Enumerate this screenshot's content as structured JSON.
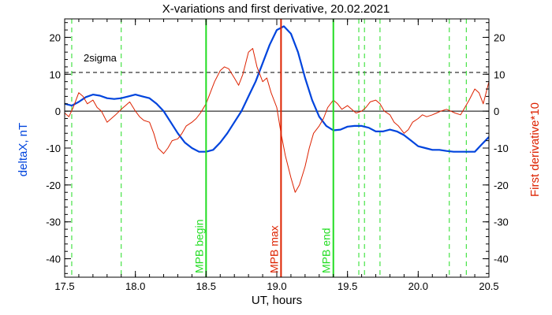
{
  "chart_data": {
    "type": "line",
    "title": "X-variations and first derivative, 20.02.2021",
    "xlabel": "UT, hours",
    "ylabel_left": "deltaX, nT",
    "ylabel_right": "First derivative*10",
    "xlim": [
      17.5,
      20.5
    ],
    "ylim": [
      -45,
      25
    ],
    "x_ticks": [
      "17.5",
      "18.0",
      "18.5",
      "19.0",
      "19.5",
      "20.0",
      "20.5"
    ],
    "y_ticks_left": [
      "20",
      "10",
      "0",
      "-10",
      "-20",
      "-30",
      "-40"
    ],
    "y_ticks_right": [
      "20",
      "10",
      "0",
      "-10",
      "-20",
      "-30",
      "-40"
    ],
    "colors": {
      "deltaX": "#0044dd",
      "derivative": "#dd2200",
      "green": "#22dd22",
      "red_marker": "#dd2200"
    },
    "sigma_level": 10.5,
    "sigma_label": "2sigma",
    "series": [
      {
        "key": "deltaX",
        "x": [
          17.5,
          17.55,
          17.6,
          17.65,
          17.7,
          17.75,
          17.8,
          17.85,
          17.9,
          17.95,
          18.0,
          18.05,
          18.1,
          18.15,
          18.2,
          18.25,
          18.3,
          18.35,
          18.4,
          18.45,
          18.5,
          18.55,
          18.6,
          18.65,
          18.7,
          18.75,
          18.8,
          18.85,
          18.9,
          18.95,
          19.0,
          19.05,
          19.1,
          19.15,
          19.2,
          19.25,
          19.3,
          19.35,
          19.4,
          19.45,
          19.5,
          19.55,
          19.6,
          19.65,
          19.7,
          19.75,
          19.8,
          19.85,
          19.9,
          19.95,
          20.0,
          20.05,
          20.1,
          20.15,
          20.2,
          20.25,
          20.3,
          20.35,
          20.4,
          20.45,
          20.5
        ],
        "y": [
          2,
          1.5,
          2.5,
          3.8,
          4.5,
          4.2,
          3.5,
          3.3,
          3.5,
          4,
          4.5,
          4,
          3.5,
          2,
          0,
          -3,
          -6,
          -8.5,
          -10,
          -11,
          -11,
          -10.5,
          -8.5,
          -6,
          -3,
          0,
          4,
          8,
          13,
          18,
          22,
          23,
          21,
          16,
          9,
          3,
          -1.5,
          -4,
          -5.2,
          -5,
          -4.2,
          -4,
          -4,
          -4.5,
          -5.5,
          -5.5,
          -5,
          -5.5,
          -6.5,
          -8,
          -9.5,
          -10,
          -10.5,
          -10.5,
          -10.8,
          -11,
          -11,
          -11,
          -11,
          -9,
          -7
        ]
      },
      {
        "key": "derivative",
        "x": [
          17.5,
          17.53,
          17.56,
          17.6,
          17.63,
          17.66,
          17.7,
          17.73,
          17.76,
          17.8,
          17.83,
          17.86,
          17.9,
          17.93,
          17.96,
          18.0,
          18.03,
          18.06,
          18.1,
          18.13,
          18.16,
          18.2,
          18.23,
          18.26,
          18.3,
          18.33,
          18.36,
          18.4,
          18.43,
          18.46,
          18.5,
          18.53,
          18.56,
          18.6,
          18.63,
          18.66,
          18.7,
          18.73,
          18.76,
          18.8,
          18.83,
          18.86,
          18.9,
          18.93,
          18.96,
          19.0,
          19.03,
          19.06,
          19.1,
          19.13,
          19.16,
          19.2,
          19.23,
          19.26,
          19.3,
          19.33,
          19.36,
          19.4,
          19.43,
          19.46,
          19.5,
          19.53,
          19.56,
          19.6,
          19.63,
          19.66,
          19.7,
          19.73,
          19.76,
          19.8,
          19.83,
          19.86,
          19.9,
          19.93,
          19.96,
          20.0,
          20.03,
          20.06,
          20.1,
          20.13,
          20.16,
          20.2,
          20.23,
          20.26,
          20.3,
          20.33,
          20.36,
          20.4,
          20.43,
          20.46,
          20.5
        ],
        "y": [
          -0.5,
          -1.5,
          1,
          5,
          4,
          2,
          3,
          1,
          0,
          -3,
          -2,
          -1,
          0.5,
          1.5,
          2.5,
          0,
          -1.5,
          -2.5,
          -3,
          -6,
          -10,
          -11.5,
          -10,
          -8,
          -7.5,
          -6,
          -4,
          -3,
          -2,
          -0.5,
          2,
          5,
          8,
          11,
          12,
          11.5,
          9,
          7,
          10,
          16,
          17,
          12,
          8,
          9,
          5,
          1,
          -6,
          -12,
          -18,
          -22,
          -20,
          -15,
          -10,
          -6,
          -4,
          -2,
          1,
          3,
          2,
          0.5,
          1.5,
          0.5,
          -0.5,
          0,
          1,
          2.5,
          3,
          2,
          0,
          -1,
          -3,
          -4,
          -6,
          -5,
          -3,
          -2,
          -1,
          -1.5,
          -1,
          -0.5,
          0,
          0.5,
          0,
          -0.5,
          -1,
          1,
          3,
          6,
          5,
          2,
          8
        ]
      }
    ],
    "vertical_lines_dashed": [
      17.55,
      17.9,
      19.58,
      19.62,
      19.73,
      20.22,
      20.34
    ],
    "vertical_markers": [
      {
        "x": 18.5,
        "label": "MPB begin",
        "color": "#22dd22"
      },
      {
        "x": 19.03,
        "label": "MPB max",
        "color": "#dd2200"
      },
      {
        "x": 19.4,
        "label": "MPB end",
        "color": "#22dd22"
      }
    ],
    "grid": false,
    "legend": "none"
  }
}
